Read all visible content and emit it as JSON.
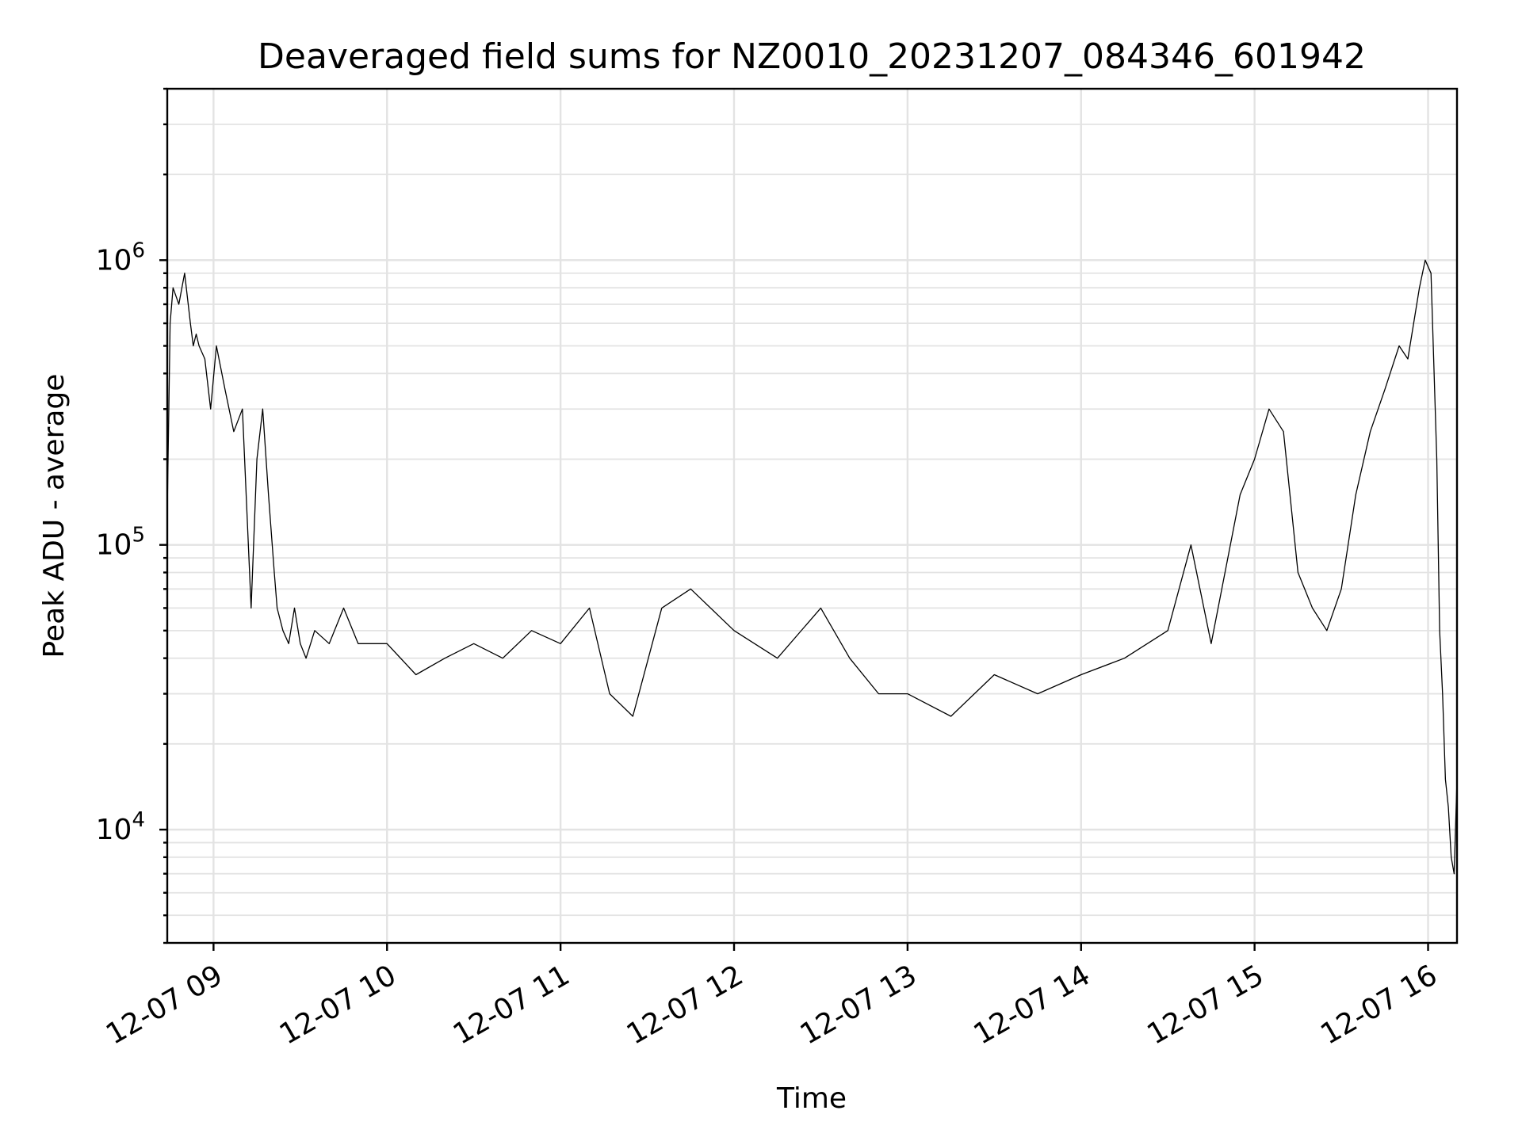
{
  "chart_data": {
    "type": "line",
    "title": "Deaveraged field sums for NZ0010_20231207_084346_601942",
    "xlabel": "Time",
    "ylabel": "Peak ADU - average",
    "xscale": "time",
    "yscale": "log",
    "xlim": [
      "2023-12-07 08:44",
      "2023-12-07 16:10"
    ],
    "ylim": [
      4000,
      4000000
    ],
    "x_ticks": [
      {
        "time": "2023-12-07 09:00",
        "label": "12-07 09"
      },
      {
        "time": "2023-12-07 10:00",
        "label": "12-07 10"
      },
      {
        "time": "2023-12-07 11:00",
        "label": "12-07 11"
      },
      {
        "time": "2023-12-07 12:00",
        "label": "12-07 12"
      },
      {
        "time": "2023-12-07 13:00",
        "label": "12-07 13"
      },
      {
        "time": "2023-12-07 14:00",
        "label": "12-07 14"
      },
      {
        "time": "2023-12-07 15:00",
        "label": "12-07 15"
      },
      {
        "time": "2023-12-07 16:00",
        "label": "12-07 16"
      }
    ],
    "y_ticks": [
      {
        "value": 10000,
        "base": "10",
        "exp": "4"
      },
      {
        "value": 100000,
        "base": "10",
        "exp": "5"
      },
      {
        "value": 1000000,
        "base": "10",
        "exp": "6"
      }
    ],
    "grid": true,
    "legend": "none",
    "line_color": "#000000",
    "series": [
      {
        "x": [
          "2023-12-07 08:44",
          "2023-12-07 08:45",
          "2023-12-07 08:46",
          "2023-12-07 08:48",
          "2023-12-07 08:50",
          "2023-12-07 08:52",
          "2023-12-07 08:53",
          "2023-12-07 08:54",
          "2023-12-07 08:55",
          "2023-12-07 08:57",
          "2023-12-07 08:59",
          "2023-12-07 09:01",
          "2023-12-07 09:04",
          "2023-12-07 09:07",
          "2023-12-07 09:10",
          "2023-12-07 09:13",
          "2023-12-07 09:15",
          "2023-12-07 09:17",
          "2023-12-07 09:19",
          "2023-12-07 09:21",
          "2023-12-07 09:22",
          "2023-12-07 09:24",
          "2023-12-07 09:26",
          "2023-12-07 09:28",
          "2023-12-07 09:30",
          "2023-12-07 09:32",
          "2023-12-07 09:35",
          "2023-12-07 09:40",
          "2023-12-07 09:45",
          "2023-12-07 09:50",
          "2023-12-07 10:00",
          "2023-12-07 10:10",
          "2023-12-07 10:20",
          "2023-12-07 10:30",
          "2023-12-07 10:40",
          "2023-12-07 10:50",
          "2023-12-07 11:00",
          "2023-12-07 11:10",
          "2023-12-07 11:17",
          "2023-12-07 11:25",
          "2023-12-07 11:35",
          "2023-12-07 11:45",
          "2023-12-07 12:00",
          "2023-12-07 12:15",
          "2023-12-07 12:30",
          "2023-12-07 12:40",
          "2023-12-07 12:50",
          "2023-12-07 13:00",
          "2023-12-07 13:15",
          "2023-12-07 13:30",
          "2023-12-07 13:45",
          "2023-12-07 14:00",
          "2023-12-07 14:15",
          "2023-12-07 14:30",
          "2023-12-07 14:38",
          "2023-12-07 14:45",
          "2023-12-07 14:55",
          "2023-12-07 15:00",
          "2023-12-07 15:05",
          "2023-12-07 15:10",
          "2023-12-07 15:15",
          "2023-12-07 15:20",
          "2023-12-07 15:25",
          "2023-12-07 15:30",
          "2023-12-07 15:35",
          "2023-12-07 15:40",
          "2023-12-07 15:45",
          "2023-12-07 15:50",
          "2023-12-07 15:53",
          "2023-12-07 15:55",
          "2023-12-07 15:57",
          "2023-12-07 15:59",
          "2023-12-07 16:01",
          "2023-12-07 16:03",
          "2023-12-07 16:04",
          "2023-12-07 16:05",
          "2023-12-07 16:06",
          "2023-12-07 16:07",
          "2023-12-07 16:08",
          "2023-12-07 16:09",
          "2023-12-07 16:10"
        ],
        "y": [
          130000,
          600000,
          800000,
          700000,
          900000,
          600000,
          500000,
          550000,
          500000,
          450000,
          300000,
          500000,
          350000,
          250000,
          300000,
          60000,
          200000,
          300000,
          150000,
          80000,
          60000,
          50000,
          45000,
          60000,
          45000,
          40000,
          50000,
          45000,
          60000,
          45000,
          45000,
          35000,
          40000,
          45000,
          40000,
          50000,
          45000,
          60000,
          30000,
          25000,
          60000,
          70000,
          50000,
          40000,
          60000,
          40000,
          30000,
          30000,
          25000,
          35000,
          30000,
          35000,
          40000,
          50000,
          100000,
          45000,
          150000,
          200000,
          300000,
          250000,
          80000,
          60000,
          50000,
          70000,
          150000,
          250000,
          350000,
          500000,
          450000,
          600000,
          800000,
          1000000,
          900000,
          200000,
          50000,
          30000,
          15000,
          12000,
          8000,
          7000,
          15000
        ]
      }
    ]
  }
}
